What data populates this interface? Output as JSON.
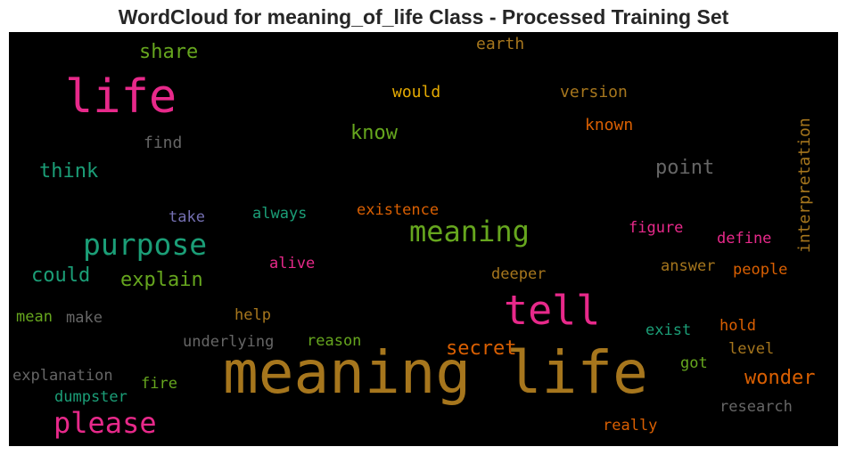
{
  "title": "WordCloud for meaning_of_life Class - Processed Training Set",
  "words": {
    "meaning_life": {
      "text": "meaning life",
      "color": "#a6761d"
    },
    "tell": {
      "text": "tell",
      "color": "#e7298a"
    },
    "life": {
      "text": "life",
      "color": "#e7298a"
    },
    "purpose": {
      "text": "purpose",
      "color": "#1b9e77"
    },
    "please": {
      "text": "please",
      "color": "#e7298a"
    },
    "meaning": {
      "text": "meaning",
      "color": "#66a61e"
    },
    "share": {
      "text": "share",
      "color": "#66a61e"
    },
    "earth": {
      "text": "earth",
      "color": "#a6761d"
    },
    "would": {
      "text": "would",
      "color": "#e6ab02"
    },
    "version": {
      "text": "version",
      "color": "#a6761d"
    },
    "known": {
      "text": "known",
      "color": "#d95f02"
    },
    "interpretation": {
      "text": "interpretation",
      "color": "#a6761d"
    },
    "find": {
      "text": "find",
      "color": "#666666"
    },
    "know": {
      "text": "know",
      "color": "#66a61e"
    },
    "think": {
      "text": "think",
      "color": "#1b9e77"
    },
    "point": {
      "text": "point",
      "color": "#666666"
    },
    "take": {
      "text": "take",
      "color": "#7570b3"
    },
    "always": {
      "text": "always",
      "color": "#1b9e77"
    },
    "existence": {
      "text": "existence",
      "color": "#d95f02"
    },
    "figure": {
      "text": "figure",
      "color": "#e7298a"
    },
    "define": {
      "text": "define",
      "color": "#e7298a"
    },
    "alive": {
      "text": "alive",
      "color": "#e7298a"
    },
    "could": {
      "text": "could",
      "color": "#1b9e77"
    },
    "explain": {
      "text": "explain",
      "color": "#66a61e"
    },
    "answer": {
      "text": "answer",
      "color": "#a6761d"
    },
    "people": {
      "text": "people",
      "color": "#d95f02"
    },
    "deeper": {
      "text": "deeper",
      "color": "#a6761d"
    },
    "mean": {
      "text": "mean",
      "color": "#66a61e"
    },
    "make": {
      "text": "make",
      "color": "#666666"
    },
    "help": {
      "text": "help",
      "color": "#a6761d"
    },
    "hold": {
      "text": "hold",
      "color": "#d95f02"
    },
    "exist": {
      "text": "exist",
      "color": "#1b9e77"
    },
    "underlying": {
      "text": "underlying",
      "color": "#666666"
    },
    "reason": {
      "text": "reason",
      "color": "#66a61e"
    },
    "secret": {
      "text": "secret",
      "color": "#d95f02"
    },
    "level": {
      "text": "level",
      "color": "#a6761d"
    },
    "got": {
      "text": "got",
      "color": "#66a61e"
    },
    "explanation": {
      "text": "explanation",
      "color": "#666666"
    },
    "fire": {
      "text": "fire",
      "color": "#66a61e"
    },
    "dumpster": {
      "text": "dumpster",
      "color": "#1b9e77"
    },
    "wonder": {
      "text": "wonder",
      "color": "#d95f02"
    },
    "research": {
      "text": "research",
      "color": "#666666"
    },
    "really": {
      "text": "really",
      "color": "#d95f02"
    }
  }
}
